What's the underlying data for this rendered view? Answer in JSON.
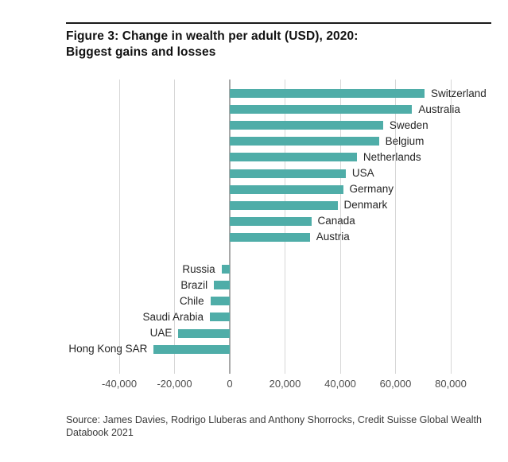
{
  "header": {
    "title_line1": "Figure 3: Change in wealth per adult (USD), 2020:",
    "title_line2": "Biggest gains and losses"
  },
  "footer": {
    "source": "Source: James Davies, Rodrigo Lluberas and Anthony Shorrocks, Credit Suisse Global Wealth Databook 2021"
  },
  "chart_data": {
    "type": "bar",
    "orientation": "horizontal",
    "title": "Figure 3: Change in wealth per adult (USD), 2020: Biggest gains and losses",
    "units": "USD",
    "categories": [
      "Switzerland",
      "Australia",
      "Sweden",
      "Belgium",
      "Netherlands",
      "USA",
      "Germany",
      "Denmark",
      "Canada",
      "Austria",
      "Russia",
      "Brazil",
      "Chile",
      "Saudi Arabia",
      "UAE",
      "Hong Kong SAR"
    ],
    "values": [
      70500,
      66000,
      55500,
      54000,
      46000,
      42000,
      41000,
      39000,
      29500,
      29000,
      -3000,
      -5700,
      -7000,
      -7200,
      -18600,
      -27500
    ],
    "bar_color": "#4FADA8",
    "x_ticks": [
      -40000,
      -20000,
      0,
      20000,
      40000,
      60000,
      80000
    ],
    "x_tick_labels": [
      "-40,000",
      "-20,000",
      "0",
      "20,000",
      "40,000",
      "60,000",
      "80,000"
    ],
    "xlim": [
      -59000,
      91000
    ],
    "grid": true,
    "legend": "none",
    "gap_after_category": "Austria",
    "gains_label_side": "right",
    "losses_label_side": "left"
  }
}
